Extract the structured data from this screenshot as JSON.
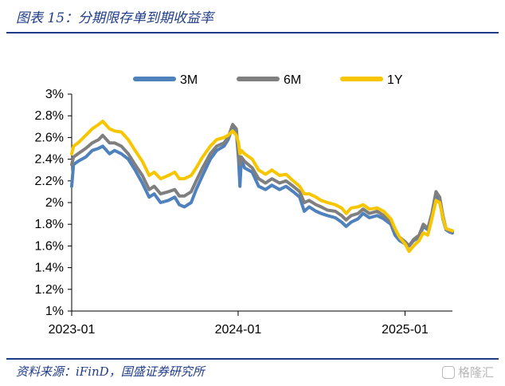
{
  "header": {
    "title": "图表 15：分期限存单到期收益率"
  },
  "footer": {
    "source": "资料来源：iFinD，国盛证券研究所",
    "watermark": "格隆汇",
    "watermark_icon": "gelonghui-logo-icon"
  },
  "chart_data": {
    "type": "line",
    "xlabel": "",
    "ylabel": "",
    "x_ticks": [
      "2023-01",
      "2024-01",
      "2025-01"
    ],
    "x_range": [
      "2023-01-01",
      "2025-04-15"
    ],
    "y_ticks": [
      "3%",
      "2.8%",
      "2.6%",
      "2.4%",
      "2.2%",
      "2%",
      "1.8%",
      "1.6%",
      "1.4%",
      "1.2%",
      "1%"
    ],
    "ylim": [
      1.0,
      3.0
    ],
    "grid": false,
    "legend_position": "top",
    "series": [
      {
        "name": "3M",
        "color": "#4f81bd",
        "points": [
          [
            "2023-01-01",
            2.15
          ],
          [
            "2023-01-05",
            2.35
          ],
          [
            "2023-01-15",
            2.38
          ],
          [
            "2023-02-01",
            2.42
          ],
          [
            "2023-02-15",
            2.48
          ],
          [
            "2023-03-01",
            2.5
          ],
          [
            "2023-03-10",
            2.52
          ],
          [
            "2023-03-25",
            2.45
          ],
          [
            "2023-04-05",
            2.48
          ],
          [
            "2023-04-20",
            2.45
          ],
          [
            "2023-05-05",
            2.4
          ],
          [
            "2023-05-20",
            2.3
          ],
          [
            "2023-06-05",
            2.18
          ],
          [
            "2023-06-20",
            2.05
          ],
          [
            "2023-07-01",
            2.08
          ],
          [
            "2023-07-15",
            2.0
          ],
          [
            "2023-08-01",
            2.02
          ],
          [
            "2023-08-15",
            2.05
          ],
          [
            "2023-08-25",
            1.98
          ],
          [
            "2023-09-05",
            1.96
          ],
          [
            "2023-09-20",
            2.0
          ],
          [
            "2023-10-01",
            2.12
          ],
          [
            "2023-10-15",
            2.25
          ],
          [
            "2023-11-01",
            2.4
          ],
          [
            "2023-11-15",
            2.48
          ],
          [
            "2023-12-01",
            2.52
          ],
          [
            "2023-12-10",
            2.58
          ],
          [
            "2023-12-20",
            2.7
          ],
          [
            "2023-12-28",
            2.65
          ],
          [
            "2024-01-02",
            2.4
          ],
          [
            "2024-01-05",
            2.15
          ],
          [
            "2024-01-08",
            2.4
          ],
          [
            "2024-01-15",
            2.32
          ],
          [
            "2024-02-01",
            2.28
          ],
          [
            "2024-02-15",
            2.15
          ],
          [
            "2024-03-01",
            2.12
          ],
          [
            "2024-03-15",
            2.16
          ],
          [
            "2024-04-01",
            2.12
          ],
          [
            "2024-04-15",
            2.15
          ],
          [
            "2024-05-01",
            2.1
          ],
          [
            "2024-05-15",
            2.05
          ],
          [
            "2024-05-25",
            1.92
          ],
          [
            "2024-06-05",
            1.96
          ],
          [
            "2024-06-20",
            1.92
          ],
          [
            "2024-07-01",
            1.9
          ],
          [
            "2024-07-15",
            1.88
          ],
          [
            "2024-08-01",
            1.86
          ],
          [
            "2024-08-15",
            1.82
          ],
          [
            "2024-08-25",
            1.78
          ],
          [
            "2024-09-05",
            1.82
          ],
          [
            "2024-09-20",
            1.85
          ],
          [
            "2024-10-01",
            1.9
          ],
          [
            "2024-10-15",
            1.86
          ],
          [
            "2024-11-01",
            1.88
          ],
          [
            "2024-11-15",
            1.85
          ],
          [
            "2024-12-01",
            1.8
          ],
          [
            "2024-12-10",
            1.7
          ],
          [
            "2024-12-20",
            1.65
          ],
          [
            "2025-01-01",
            1.62
          ],
          [
            "2025-01-10",
            1.6
          ],
          [
            "2025-01-20",
            1.65
          ],
          [
            "2025-02-01",
            1.68
          ],
          [
            "2025-02-10",
            1.78
          ],
          [
            "2025-02-20",
            1.75
          ],
          [
            "2025-03-01",
            1.88
          ],
          [
            "2025-03-10",
            2.05
          ],
          [
            "2025-03-18",
            2.02
          ],
          [
            "2025-03-25",
            1.85
          ],
          [
            "2025-04-01",
            1.75
          ],
          [
            "2025-04-08",
            1.73
          ],
          [
            "2025-04-15",
            1.72
          ]
        ]
      },
      {
        "name": "6M",
        "color": "#7f7f7f",
        "points": [
          [
            "2023-01-01",
            2.35
          ],
          [
            "2023-01-05",
            2.42
          ],
          [
            "2023-01-15",
            2.45
          ],
          [
            "2023-02-01",
            2.5
          ],
          [
            "2023-02-15",
            2.55
          ],
          [
            "2023-03-01",
            2.58
          ],
          [
            "2023-03-10",
            2.62
          ],
          [
            "2023-03-25",
            2.55
          ],
          [
            "2023-04-05",
            2.55
          ],
          [
            "2023-04-20",
            2.52
          ],
          [
            "2023-05-05",
            2.45
          ],
          [
            "2023-05-20",
            2.35
          ],
          [
            "2023-06-05",
            2.25
          ],
          [
            "2023-06-20",
            2.12
          ],
          [
            "2023-07-01",
            2.15
          ],
          [
            "2023-07-15",
            2.08
          ],
          [
            "2023-08-01",
            2.1
          ],
          [
            "2023-08-15",
            2.12
          ],
          [
            "2023-08-25",
            2.06
          ],
          [
            "2023-09-05",
            2.06
          ],
          [
            "2023-09-20",
            2.1
          ],
          [
            "2023-10-01",
            2.2
          ],
          [
            "2023-10-15",
            2.32
          ],
          [
            "2023-11-01",
            2.45
          ],
          [
            "2023-11-15",
            2.52
          ],
          [
            "2023-12-01",
            2.55
          ],
          [
            "2023-12-10",
            2.6
          ],
          [
            "2023-12-20",
            2.72
          ],
          [
            "2023-12-28",
            2.68
          ],
          [
            "2024-01-02",
            2.45
          ],
          [
            "2024-01-05",
            2.35
          ],
          [
            "2024-01-08",
            2.42
          ],
          [
            "2024-01-15",
            2.38
          ],
          [
            "2024-02-01",
            2.32
          ],
          [
            "2024-02-15",
            2.22
          ],
          [
            "2024-03-01",
            2.18
          ],
          [
            "2024-03-15",
            2.22
          ],
          [
            "2024-04-01",
            2.18
          ],
          [
            "2024-04-15",
            2.2
          ],
          [
            "2024-05-01",
            2.15
          ],
          [
            "2024-05-15",
            2.1
          ],
          [
            "2024-05-25",
            2.0
          ],
          [
            "2024-06-05",
            2.02
          ],
          [
            "2024-06-20",
            1.98
          ],
          [
            "2024-07-01",
            1.96
          ],
          [
            "2024-07-15",
            1.93
          ],
          [
            "2024-08-01",
            1.92
          ],
          [
            "2024-08-15",
            1.88
          ],
          [
            "2024-08-25",
            1.84
          ],
          [
            "2024-09-05",
            1.88
          ],
          [
            "2024-09-20",
            1.9
          ],
          [
            "2024-10-01",
            1.94
          ],
          [
            "2024-10-15",
            1.9
          ],
          [
            "2024-11-01",
            1.92
          ],
          [
            "2024-11-15",
            1.88
          ],
          [
            "2024-12-01",
            1.82
          ],
          [
            "2024-12-10",
            1.74
          ],
          [
            "2024-12-20",
            1.68
          ],
          [
            "2025-01-01",
            1.64
          ],
          [
            "2025-01-10",
            1.6
          ],
          [
            "2025-01-20",
            1.66
          ],
          [
            "2025-02-01",
            1.7
          ],
          [
            "2025-02-10",
            1.8
          ],
          [
            "2025-02-20",
            1.76
          ],
          [
            "2025-03-01",
            1.9
          ],
          [
            "2025-03-10",
            2.1
          ],
          [
            "2025-03-18",
            2.05
          ],
          [
            "2025-03-25",
            1.88
          ],
          [
            "2025-04-01",
            1.76
          ],
          [
            "2025-04-08",
            1.74
          ],
          [
            "2025-04-15",
            1.73
          ]
        ]
      },
      {
        "name": "1Y",
        "color": "#f7c600",
        "points": [
          [
            "2023-01-01",
            2.45
          ],
          [
            "2023-01-05",
            2.52
          ],
          [
            "2023-01-15",
            2.55
          ],
          [
            "2023-02-01",
            2.62
          ],
          [
            "2023-02-15",
            2.68
          ],
          [
            "2023-03-01",
            2.72
          ],
          [
            "2023-03-10",
            2.75
          ],
          [
            "2023-03-25",
            2.68
          ],
          [
            "2023-04-05",
            2.66
          ],
          [
            "2023-04-20",
            2.65
          ],
          [
            "2023-05-05",
            2.58
          ],
          [
            "2023-05-20",
            2.48
          ],
          [
            "2023-06-05",
            2.38
          ],
          [
            "2023-06-20",
            2.25
          ],
          [
            "2023-07-01",
            2.28
          ],
          [
            "2023-07-15",
            2.22
          ],
          [
            "2023-08-01",
            2.25
          ],
          [
            "2023-08-15",
            2.28
          ],
          [
            "2023-08-25",
            2.22
          ],
          [
            "2023-09-05",
            2.22
          ],
          [
            "2023-09-20",
            2.25
          ],
          [
            "2023-10-01",
            2.32
          ],
          [
            "2023-10-15",
            2.42
          ],
          [
            "2023-11-01",
            2.52
          ],
          [
            "2023-11-15",
            2.58
          ],
          [
            "2023-12-01",
            2.6
          ],
          [
            "2023-12-10",
            2.62
          ],
          [
            "2023-12-20",
            2.66
          ],
          [
            "2023-12-28",
            2.62
          ],
          [
            "2024-01-02",
            2.55
          ],
          [
            "2024-01-05",
            2.45
          ],
          [
            "2024-01-08",
            2.48
          ],
          [
            "2024-01-15",
            2.45
          ],
          [
            "2024-02-01",
            2.4
          ],
          [
            "2024-02-15",
            2.3
          ],
          [
            "2024-03-01",
            2.26
          ],
          [
            "2024-03-15",
            2.3
          ],
          [
            "2024-04-01",
            2.25
          ],
          [
            "2024-04-15",
            2.26
          ],
          [
            "2024-05-01",
            2.2
          ],
          [
            "2024-05-15",
            2.15
          ],
          [
            "2024-05-25",
            2.08
          ],
          [
            "2024-06-05",
            2.08
          ],
          [
            "2024-06-20",
            2.05
          ],
          [
            "2024-07-01",
            2.02
          ],
          [
            "2024-07-15",
            2.0
          ],
          [
            "2024-08-01",
            1.98
          ],
          [
            "2024-08-15",
            1.95
          ],
          [
            "2024-08-25",
            1.9
          ],
          [
            "2024-09-05",
            1.95
          ],
          [
            "2024-09-20",
            1.96
          ],
          [
            "2024-10-01",
            1.98
          ],
          [
            "2024-10-15",
            1.94
          ],
          [
            "2024-11-01",
            1.95
          ],
          [
            "2024-11-15",
            1.92
          ],
          [
            "2024-12-01",
            1.85
          ],
          [
            "2024-12-10",
            1.76
          ],
          [
            "2024-12-20",
            1.68
          ],
          [
            "2025-01-01",
            1.62
          ],
          [
            "2025-01-10",
            1.55
          ],
          [
            "2025-01-20",
            1.6
          ],
          [
            "2025-02-01",
            1.65
          ],
          [
            "2025-02-10",
            1.72
          ],
          [
            "2025-02-20",
            1.7
          ],
          [
            "2025-03-01",
            1.85
          ],
          [
            "2025-03-10",
            2.02
          ],
          [
            "2025-03-18",
            2.0
          ],
          [
            "2025-03-25",
            1.86
          ],
          [
            "2025-04-01",
            1.76
          ],
          [
            "2025-04-08",
            1.75
          ],
          [
            "2025-04-15",
            1.74
          ]
        ]
      }
    ]
  }
}
